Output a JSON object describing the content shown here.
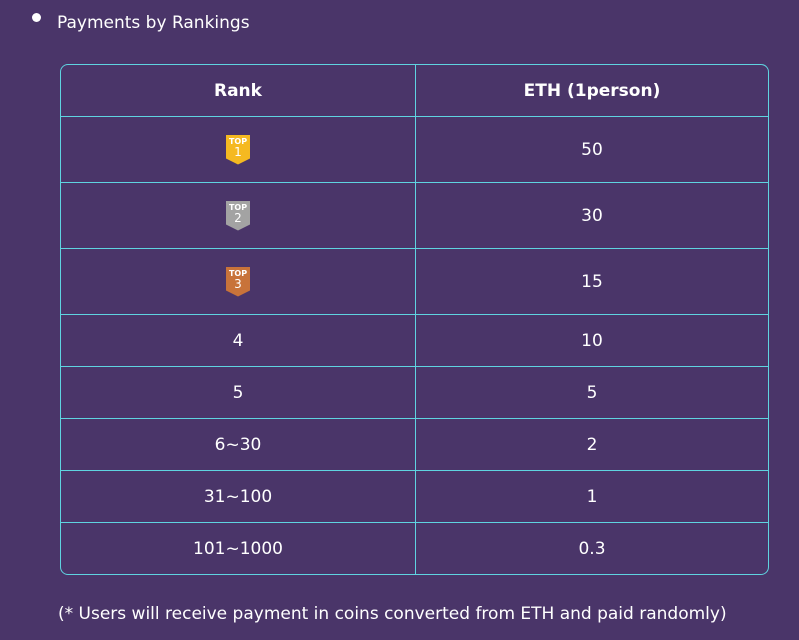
{
  "title": "Payments by Rankings",
  "table": {
    "header": [
      "Rank",
      "ETH (1person)"
    ],
    "rows": [
      [
        {
          "badge": "TOP",
          "number": "1"
        },
        50
      ],
      [
        {
          "badge": "TOP",
          "number": "2"
        },
        30
      ],
      [
        {
          "badge": "TOP",
          "number": "3"
        },
        15
      ],
      [
        "4",
        10
      ],
      [
        "5",
        5
      ],
      [
        "6~30",
        2
      ],
      [
        "31~100",
        1
      ],
      [
        "101~1000",
        0.3
      ]
    ]
  },
  "footnote": "(* Users will receive payment in coins converted from ETH and paid randomly)"
}
